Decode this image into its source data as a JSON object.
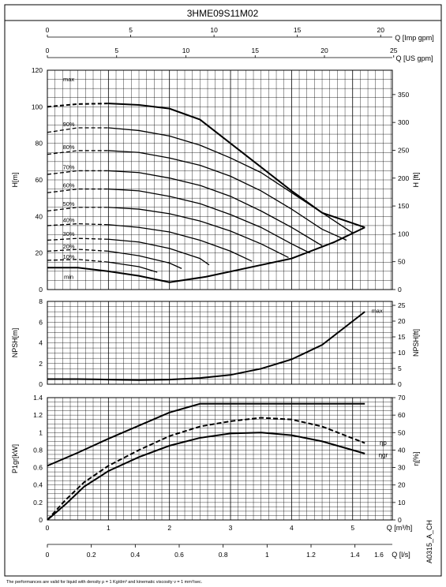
{
  "title": "3HME09S11M02",
  "footnote": "The performances are valid for liquid with density ρ = 1 Kg/dm³ and kinematic viscosity ν = 1 mm²/sec.",
  "code": "A0315_A_CH",
  "chart_data": [
    {
      "type": "line",
      "name": "head",
      "title": "3HME09S11M02",
      "top_axes": [
        {
          "label": "Q [Imp gpm]",
          "range": [
            0,
            20.7
          ],
          "ticks": [
            0,
            5,
            10,
            15,
            20
          ]
        },
        {
          "label": "Q [US gpm]",
          "range": [
            0,
            24.9
          ],
          "ticks": [
            0,
            5,
            10,
            15,
            20,
            25
          ]
        }
      ],
      "xlim": [
        0,
        5.65
      ],
      "ylabel": "H[m]",
      "ylim": [
        0,
        120
      ],
      "yticks": [
        0,
        20,
        40,
        60,
        80,
        100,
        120
      ],
      "ylabel_right": "H [ft]",
      "yticks_right": [
        0,
        50,
        100,
        150,
        200,
        250,
        300,
        350
      ],
      "grid": true,
      "curve_labels": [
        "max",
        "90%",
        "80%",
        "70%",
        "60%",
        "50%",
        "40%",
        "30%",
        "20%",
        "10%",
        "min"
      ],
      "series": [
        {
          "name": "max",
          "x": [
            0.0,
            0.5,
            1.0,
            1.5,
            2.0,
            2.5,
            3.0,
            3.5,
            4.0,
            4.5,
            5.2
          ],
          "y": [
            100.0,
            101.5,
            101.8,
            101.0,
            99.0,
            93.0,
            80.0,
            67.0,
            54.0,
            42.0,
            34.0
          ]
        },
        {
          "name": "90%",
          "x": [
            0.0,
            0.5,
            1.0,
            1.5,
            2.0,
            2.5,
            3.0,
            3.5,
            4.0,
            4.5,
            5.0
          ],
          "y": [
            86.0,
            88.5,
            88.5,
            87.0,
            84.0,
            79.0,
            72.0,
            64.0,
            53.0,
            42.0,
            31.0
          ]
        },
        {
          "name": "80%",
          "x": [
            0.0,
            0.5,
            1.0,
            1.5,
            2.0,
            2.5,
            3.0,
            3.5,
            4.0,
            4.5,
            4.9
          ],
          "y": [
            74.0,
            76.0,
            76.0,
            75.0,
            72.0,
            68.0,
            62.0,
            54.0,
            44.0,
            33.0,
            27.0
          ]
        },
        {
          "name": "70%",
          "x": [
            0.0,
            0.5,
            1.0,
            1.5,
            2.0,
            2.5,
            3.0,
            3.5,
            4.0,
            4.5
          ],
          "y": [
            63.0,
            65.0,
            65.0,
            64.0,
            61.0,
            57.0,
            51.0,
            43.0,
            34.0,
            24.0
          ]
        },
        {
          "name": "60%",
          "x": [
            0.0,
            0.5,
            1.0,
            1.5,
            2.0,
            2.5,
            3.0,
            3.5,
            4.0,
            4.3
          ],
          "y": [
            53.0,
            55.0,
            55.0,
            54.0,
            51.0,
            47.0,
            41.0,
            34.0,
            25.0,
            20.0
          ]
        },
        {
          "name": "50%",
          "x": [
            0.0,
            0.5,
            1.0,
            1.5,
            2.0,
            2.5,
            3.0,
            3.5,
            3.95
          ],
          "y": [
            43.0,
            45.0,
            45.0,
            44.0,
            41.5,
            37.5,
            32.0,
            25.0,
            17.5
          ]
        },
        {
          "name": "40%",
          "x": [
            0.0,
            0.5,
            1.0,
            1.5,
            2.0,
            2.5,
            3.0,
            3.35
          ],
          "y": [
            35.0,
            36.0,
            35.5,
            34.0,
            31.5,
            27.0,
            21.0,
            15.5
          ]
        },
        {
          "name": "30%",
          "x": [
            0.0,
            0.5,
            1.0,
            1.5,
            2.0,
            2.5,
            2.65
          ],
          "y": [
            27.0,
            28.0,
            27.5,
            26.0,
            22.5,
            17.0,
            13.5
          ]
        },
        {
          "name": "20%",
          "x": [
            0.0,
            0.5,
            1.0,
            1.5,
            2.0,
            2.2
          ],
          "y": [
            21.0,
            22.0,
            21.0,
            18.5,
            14.5,
            11.5
          ]
        },
        {
          "name": "10%",
          "x": [
            0.0,
            0.5,
            1.0,
            1.5,
            1.8
          ],
          "y": [
            16.0,
            16.5,
            15.0,
            12.5,
            9.5
          ]
        },
        {
          "name": "min",
          "x": [
            0.0,
            0.5,
            1.0,
            1.5,
            2.0
          ],
          "y": [
            12.0,
            12.0,
            10.0,
            7.5,
            4.0
          ]
        },
        {
          "name": "envelope",
          "x": [
            2.0,
            2.6,
            3.3,
            4.0,
            4.7,
            5.2
          ],
          "y": [
            4.0,
            7.0,
            12.0,
            17.0,
            26.0,
            34.0
          ]
        }
      ]
    },
    {
      "type": "line",
      "name": "npsh",
      "xlim": [
        0,
        5.65
      ],
      "ylabel": "NPSH[m]",
      "ylim": [
        0,
        8
      ],
      "yticks": [
        0,
        2,
        4,
        6,
        8
      ],
      "ylabel_right": "NPSH[ft]",
      "yticks_right": [
        0,
        5,
        10,
        15,
        20,
        25
      ],
      "grid": true,
      "series": [
        {
          "name": "max",
          "x": [
            0.0,
            0.5,
            1.0,
            1.5,
            2.0,
            2.5,
            3.0,
            3.5,
            4.0,
            4.5,
            5.2
          ],
          "y": [
            0.5,
            0.5,
            0.45,
            0.4,
            0.45,
            0.6,
            0.9,
            1.5,
            2.4,
            3.8,
            7.0
          ]
        }
      ]
    },
    {
      "type": "line",
      "name": "power-efficiency",
      "xlabel": "Q [m³/h]",
      "xticks": [
        0,
        1,
        2,
        3,
        4,
        5
      ],
      "xlim": [
        0,
        5.65
      ],
      "bottom_axis": {
        "label": "Q [l/s]",
        "ticks": [
          0,
          0.2,
          0.4,
          0.6,
          0.8,
          1,
          1.2,
          1.4,
          1.6
        ]
      },
      "ylabel": "P1gr[kW]",
      "ylim": [
        0,
        1.4
      ],
      "yticks": [
        0,
        0.2,
        0.4,
        0.6,
        0.8,
        1,
        1.2,
        1.4
      ],
      "ylabel_right": "η[%]",
      "yticks_right": [
        0,
        10,
        20,
        30,
        40,
        50,
        60,
        70
      ],
      "grid": true,
      "curve_labels": [
        "ηp",
        "ηgr"
      ],
      "series": [
        {
          "name": "P1gr",
          "x": [
            0.0,
            0.5,
            1.0,
            1.5,
            2.0,
            2.5,
            3.0,
            3.5,
            4.0,
            4.5,
            5.2
          ],
          "y": [
            0.62,
            0.77,
            0.93,
            1.08,
            1.23,
            1.33,
            1.33,
            1.33,
            1.33,
            1.33,
            1.33
          ]
        },
        {
          "name": "ηp",
          "x": [
            0.0,
            0.3,
            0.6,
            1.0,
            1.5,
            2.0,
            2.5,
            3.0,
            3.5,
            4.0,
            4.5,
            5.2
          ],
          "y": [
            0.0,
            0.23,
            0.43,
            0.62,
            0.8,
            0.96,
            1.07,
            1.13,
            1.17,
            1.15,
            1.07,
            0.88
          ]
        },
        {
          "name": "ηgr",
          "x": [
            0.0,
            0.3,
            0.6,
            1.0,
            1.5,
            2.0,
            2.5,
            3.0,
            3.5,
            4.0,
            4.5,
            5.2
          ],
          "y": [
            0.0,
            0.18,
            0.38,
            0.56,
            0.72,
            0.85,
            0.94,
            0.99,
            1.0,
            0.97,
            0.9,
            0.76
          ]
        }
      ]
    }
  ]
}
